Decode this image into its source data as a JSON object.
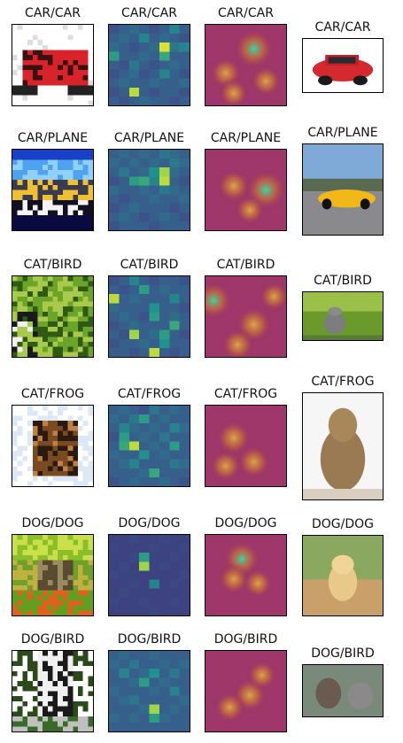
{
  "rows": [
    {
      "titles": [
        "CAR/CAR",
        "CAR/CAR",
        "CAR/CAR",
        "CAR/CAR"
      ],
      "scene": "car-red-small",
      "photo": "car-red",
      "grid": [
        [
          0.25,
          0.3,
          0.35,
          0.3,
          0.25,
          0.3,
          0.45,
          0.3
        ],
        [
          0.3,
          0.35,
          0.3,
          0.45,
          0.3,
          0.35,
          0.3,
          0.25
        ],
        [
          0.35,
          0.3,
          0.25,
          0.3,
          0.35,
          0.95,
          0.4,
          0.45
        ],
        [
          0.55,
          0.3,
          0.3,
          0.35,
          0.3,
          0.6,
          0.3,
          0.3
        ],
        [
          0.3,
          0.25,
          0.4,
          0.3,
          0.25,
          0.3,
          0.35,
          0.3
        ],
        [
          0.25,
          0.3,
          0.35,
          0.25,
          0.3,
          0.45,
          0.3,
          0.25
        ],
        [
          0.3,
          0.35,
          0.3,
          0.3,
          0.35,
          0.3,
          0.3,
          0.35
        ],
        [
          0.25,
          0.3,
          0.9,
          0.3,
          0.25,
          0.3,
          0.3,
          0.25
        ],
        [
          0.3,
          0.25,
          0.3,
          0.35,
          0.3,
          0.3,
          0.25,
          0.3
        ]
      ],
      "blobs": [
        [
          0.6,
          0.3,
          0.9
        ],
        [
          0.25,
          0.6,
          0.5
        ],
        [
          0.75,
          0.7,
          0.45
        ],
        [
          0.35,
          0.85,
          0.4
        ]
      ]
    },
    {
      "titles": [
        "CAR/PLANE",
        "CAR/PLANE",
        "CAR/PLANE",
        "CAR/PLANE"
      ],
      "scene": "sky-small",
      "photo": "car-yellow",
      "grid": [
        [
          0.3,
          0.35,
          0.3,
          0.35,
          0.3,
          0.4,
          0.35,
          0.3
        ],
        [
          0.35,
          0.3,
          0.35,
          0.3,
          0.35,
          0.3,
          0.4,
          0.35
        ],
        [
          0.3,
          0.4,
          0.3,
          0.35,
          0.5,
          0.85,
          0.35,
          0.3
        ],
        [
          0.25,
          0.3,
          0.55,
          0.6,
          0.45,
          0.9,
          0.3,
          0.25
        ],
        [
          0.35,
          0.3,
          0.3,
          0.35,
          0.3,
          0.4,
          0.35,
          0.3
        ],
        [
          0.3,
          0.25,
          0.3,
          0.3,
          0.35,
          0.3,
          0.3,
          0.35
        ],
        [
          0.25,
          0.3,
          0.35,
          0.3,
          0.3,
          0.3,
          0.25,
          0.3
        ],
        [
          0.3,
          0.35,
          0.3,
          0.25,
          0.3,
          0.35,
          0.3,
          0.25
        ],
        [
          0.25,
          0.3,
          0.3,
          0.3,
          0.25,
          0.3,
          0.3,
          0.3
        ]
      ],
      "blobs": [
        [
          0.75,
          0.5,
          0.95
        ],
        [
          0.35,
          0.45,
          0.55
        ],
        [
          0.55,
          0.75,
          0.4
        ]
      ]
    },
    {
      "titles": [
        "CAT/BIRD",
        "CAT/BIRD",
        "CAT/BIRD",
        "CAT/BIRD"
      ],
      "scene": "green-small",
      "photo": "cat-grass",
      "grid": [
        [
          0.25,
          0.3,
          0.45,
          0.3,
          0.25,
          0.3,
          0.3,
          0.25
        ],
        [
          0.3,
          0.25,
          0.3,
          0.55,
          0.3,
          0.35,
          0.3,
          0.3
        ],
        [
          0.9,
          0.3,
          0.35,
          0.3,
          0.3,
          0.3,
          0.45,
          0.3
        ],
        [
          0.35,
          0.3,
          0.3,
          0.3,
          0.5,
          0.3,
          0.3,
          0.25
        ],
        [
          0.3,
          0.35,
          0.3,
          0.25,
          0.55,
          0.3,
          0.35,
          0.3
        ],
        [
          0.25,
          0.3,
          0.35,
          0.3,
          0.3,
          0.3,
          0.6,
          0.3
        ],
        [
          0.3,
          0.25,
          0.85,
          0.3,
          0.35,
          0.55,
          0.3,
          0.25
        ],
        [
          0.25,
          0.3,
          0.3,
          0.35,
          0.3,
          0.5,
          0.3,
          0.3
        ],
        [
          0.3,
          0.3,
          0.25,
          0.3,
          0.9,
          0.3,
          0.25,
          0.3
        ]
      ],
      "blobs": [
        [
          0.1,
          0.3,
          0.8
        ],
        [
          0.6,
          0.6,
          0.7
        ],
        [
          0.4,
          0.85,
          0.55
        ],
        [
          0.85,
          0.25,
          0.4
        ]
      ]
    },
    {
      "titles": [
        "CAT/FROG",
        "CAT/FROG",
        "CAT/FROG",
        "CAT/FROG"
      ],
      "scene": "cat-small",
      "photo": "cat-sitting",
      "grid": [
        [
          0.3,
          0.35,
          0.3,
          0.25,
          0.4,
          0.3,
          0.35,
          0.3
        ],
        [
          0.35,
          0.3,
          0.4,
          0.55,
          0.3,
          0.35,
          0.3,
          0.3
        ],
        [
          0.3,
          0.45,
          0.35,
          0.3,
          0.35,
          0.3,
          0.45,
          0.35
        ],
        [
          0.25,
          0.55,
          0.3,
          0.35,
          0.3,
          0.4,
          0.3,
          0.3
        ],
        [
          0.3,
          0.6,
          0.9,
          0.3,
          0.35,
          0.3,
          0.55,
          0.3
        ],
        [
          0.35,
          0.3,
          0.3,
          0.5,
          0.3,
          0.35,
          0.3,
          0.3
        ],
        [
          0.3,
          0.35,
          0.45,
          0.3,
          0.3,
          0.3,
          0.4,
          0.35
        ],
        [
          0.3,
          0.3,
          0.3,
          0.35,
          0.6,
          0.3,
          0.3,
          0.3
        ],
        [
          0.25,
          0.3,
          0.35,
          0.3,
          0.3,
          0.35,
          0.3,
          0.25
        ]
      ],
      "blobs": [
        [
          0.35,
          0.4,
          0.65
        ],
        [
          0.6,
          0.7,
          0.55
        ],
        [
          0.25,
          0.75,
          0.5
        ]
      ]
    },
    {
      "titles": [
        "DOG/DOG",
        "DOG/DOG",
        "DOG/DOG",
        "DOG/DOG"
      ],
      "scene": "dog-small",
      "photo": "dog-puppy",
      "grid": [
        [
          0.2,
          0.2,
          0.22,
          0.2,
          0.2,
          0.22,
          0.2,
          0.2
        ],
        [
          0.22,
          0.2,
          0.2,
          0.2,
          0.22,
          0.2,
          0.2,
          0.22
        ],
        [
          0.2,
          0.2,
          0.22,
          0.55,
          0.2,
          0.2,
          0.22,
          0.2
        ],
        [
          0.2,
          0.22,
          0.2,
          0.85,
          0.2,
          0.22,
          0.2,
          0.2
        ],
        [
          0.22,
          0.2,
          0.2,
          0.2,
          0.2,
          0.2,
          0.2,
          0.22
        ],
        [
          0.2,
          0.2,
          0.22,
          0.2,
          0.45,
          0.2,
          0.22,
          0.2
        ],
        [
          0.2,
          0.22,
          0.2,
          0.2,
          0.2,
          0.2,
          0.2,
          0.2
        ],
        [
          0.22,
          0.2,
          0.2,
          0.22,
          0.2,
          0.2,
          0.22,
          0.2
        ],
        [
          0.2,
          0.2,
          0.2,
          0.2,
          0.22,
          0.2,
          0.2,
          0.2
        ]
      ],
      "blobs": [
        [
          0.45,
          0.3,
          0.75
        ],
        [
          0.35,
          0.55,
          0.45
        ],
        [
          0.65,
          0.6,
          0.4
        ]
      ]
    },
    {
      "titles": [
        "DOG/BIRD",
        "DOG/BIRD",
        "DOG/BIRD",
        "DOG/BIRD"
      ],
      "scene": "dog2-small",
      "photo": "dog-afghan",
      "grid": [
        [
          0.3,
          0.35,
          0.3,
          0.3,
          0.35,
          0.3,
          0.3,
          0.3
        ],
        [
          0.35,
          0.3,
          0.4,
          0.3,
          0.3,
          0.35,
          0.3,
          0.35
        ],
        [
          0.3,
          0.45,
          0.3,
          0.35,
          0.5,
          0.3,
          0.4,
          0.3
        ],
        [
          0.3,
          0.3,
          0.35,
          0.55,
          0.3,
          0.35,
          0.3,
          0.3
        ],
        [
          0.35,
          0.3,
          0.3,
          0.3,
          0.35,
          0.3,
          0.45,
          0.3
        ],
        [
          0.3,
          0.35,
          0.4,
          0.3,
          0.3,
          0.3,
          0.3,
          0.35
        ],
        [
          0.3,
          0.3,
          0.3,
          0.35,
          0.85,
          0.3,
          0.35,
          0.3
        ],
        [
          0.35,
          0.3,
          0.35,
          0.3,
          0.55,
          0.35,
          0.3,
          0.3
        ],
        [
          0.3,
          0.3,
          0.3,
          0.3,
          0.3,
          0.3,
          0.3,
          0.3
        ]
      ],
      "blobs": [
        [
          0.55,
          0.55,
          0.6
        ],
        [
          0.3,
          0.7,
          0.45
        ],
        [
          0.7,
          0.3,
          0.4
        ]
      ]
    }
  ]
}
